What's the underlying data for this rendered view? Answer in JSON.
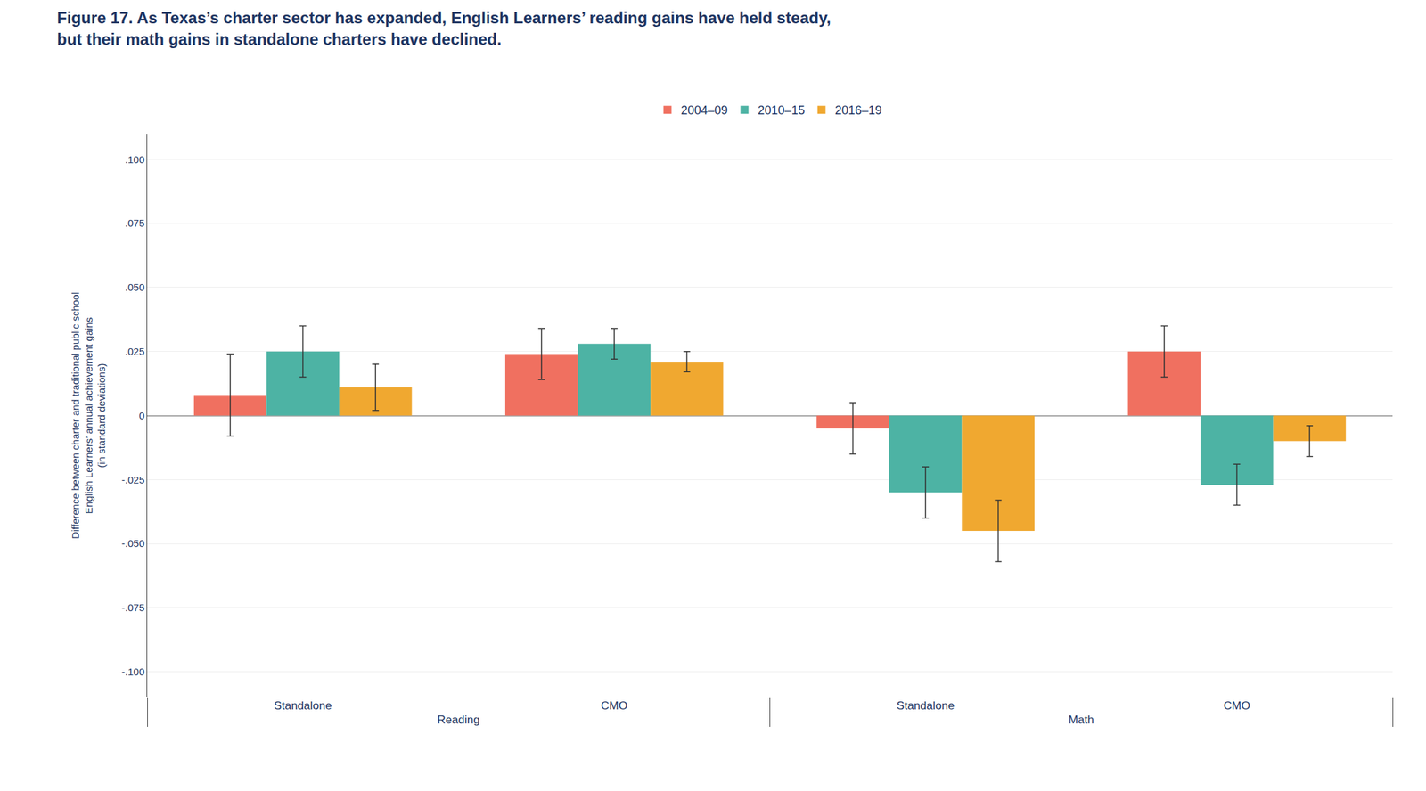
{
  "chart_data": {
    "type": "bar",
    "title": "Figure 17. As Texas’s charter sector has expanded, English Learners’ reading gains have held steady,\nbut their math gains in standalone charters have declined.",
    "y_label": "Difference between charter and traditional public school\nEnglish Learners’ annual achievement gains\n(in standard deviations)",
    "category_groups": [
      "Reading",
      "Reading",
      "Math",
      "Math"
    ],
    "categories": [
      "Standalone",
      "CMO",
      "Standalone",
      "CMO"
    ],
    "series": [
      {
        "name": "2004–09",
        "color": "#f07060",
        "values": [
          0.008,
          0.024,
          -0.005,
          0.025
        ],
        "errors": [
          0.016,
          0.01,
          0.01,
          0.01
        ]
      },
      {
        "name": "2010–15",
        "color": "#4db3a4",
        "values": [
          0.025,
          0.028,
          -0.03,
          -0.027
        ],
        "errors": [
          0.01,
          0.006,
          0.01,
          0.008
        ]
      },
      {
        "name": "2016–19",
        "color": "#f0a830",
        "values": [
          0.011,
          0.021,
          -0.045,
          -0.01
        ],
        "errors": [
          0.009,
          0.004,
          0.012,
          0.006
        ]
      }
    ],
    "ylim": [
      -0.11,
      0.11
    ],
    "yticks": [
      {
        "value": -0.1,
        "label": "-.100"
      },
      {
        "value": -0.075,
        "label": "-.075"
      },
      {
        "value": -0.05,
        "label": "-.050"
      },
      {
        "value": -0.025,
        "label": "-.025"
      },
      0,
      {
        "value": 0.025,
        "label": ".025"
      },
      {
        "value": 0.05,
        "label": ".050"
      },
      {
        "value": 0.075,
        "label": ".075"
      },
      {
        "value": 0.1,
        "label": ".100"
      }
    ],
    "grid": true,
    "legend": "upper center"
  }
}
